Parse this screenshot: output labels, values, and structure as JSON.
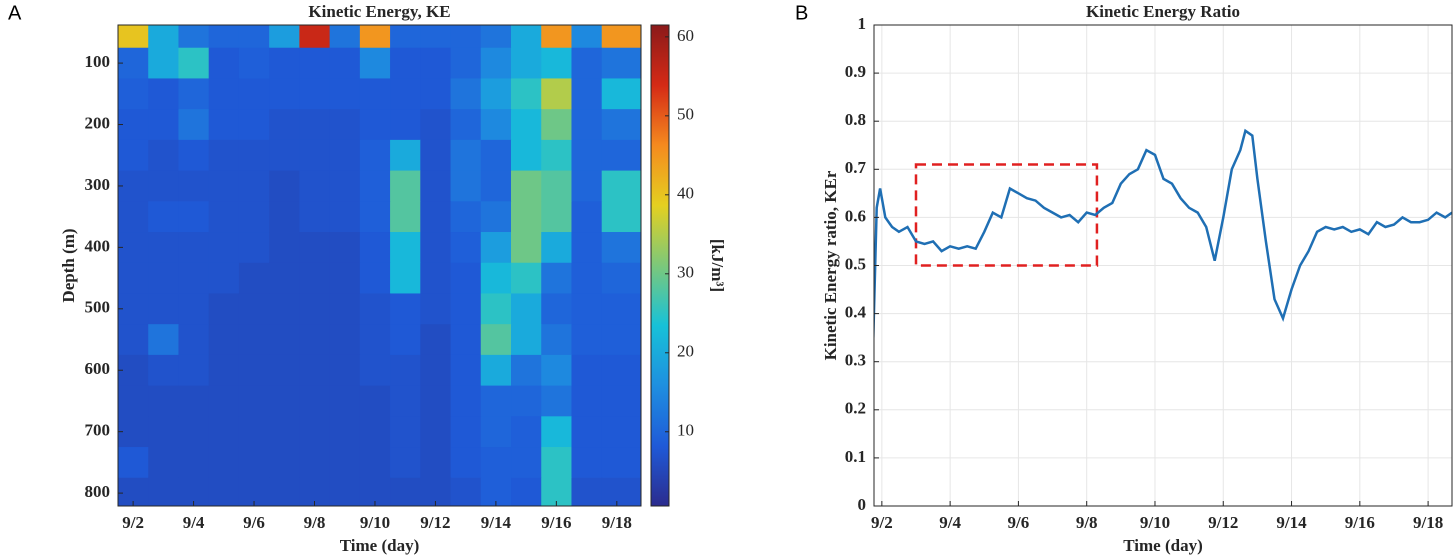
{
  "chart_data": [
    {
      "type": "heatmap",
      "panel_label": "A",
      "title": "Kinetic Energy, KE",
      "x_label": "Time (day)",
      "y_label": "Depth (m)",
      "colorbar_label": "[kJ/m³]",
      "x": [
        2,
        3,
        4,
        5,
        6,
        7,
        8,
        9,
        10,
        11,
        12,
        13,
        14,
        15,
        16,
        17,
        18
      ],
      "y": [
        50,
        100,
        150,
        200,
        250,
        300,
        350,
        400,
        450,
        500,
        550,
        600,
        650,
        700,
        750,
        800
      ],
      "z": [
        [
          40,
          20,
          12,
          10,
          10,
          18,
          55,
          12,
          45,
          10,
          10,
          10,
          12,
          20,
          45,
          15,
          45
        ],
        [
          10,
          20,
          25,
          8,
          9,
          8,
          8,
          8,
          15,
          8,
          8,
          10,
          15,
          20,
          22,
          10,
          12
        ],
        [
          9,
          8,
          10,
          8,
          8,
          8,
          8,
          8,
          8,
          8,
          8,
          12,
          18,
          25,
          35,
          10,
          22
        ],
        [
          8,
          8,
          12,
          8,
          8,
          7,
          7,
          7,
          8,
          8,
          7,
          10,
          15,
          22,
          30,
          10,
          12
        ],
        [
          8,
          7,
          8,
          7,
          7,
          7,
          7,
          7,
          9,
          20,
          7,
          12,
          10,
          22,
          25,
          10,
          10
        ],
        [
          7,
          7,
          7,
          7,
          7,
          6,
          7,
          7,
          9,
          28,
          7,
          12,
          10,
          30,
          28,
          10,
          25
        ],
        [
          7,
          8,
          8,
          7,
          7,
          6,
          7,
          7,
          9,
          28,
          7,
          10,
          12,
          30,
          28,
          9,
          25
        ],
        [
          7,
          7,
          7,
          7,
          7,
          6,
          6,
          6,
          8,
          22,
          7,
          9,
          18,
          30,
          20,
          9,
          12
        ],
        [
          7,
          7,
          7,
          7,
          6,
          6,
          6,
          6,
          8,
          22,
          7,
          8,
          22,
          25,
          12,
          9,
          10
        ],
        [
          7,
          7,
          7,
          6,
          6,
          6,
          6,
          6,
          7,
          8,
          7,
          8,
          25,
          20,
          10,
          9,
          9
        ],
        [
          7,
          12,
          7,
          6,
          6,
          6,
          6,
          6,
          7,
          8,
          6,
          8,
          28,
          20,
          12,
          9,
          9
        ],
        [
          6,
          7,
          7,
          6,
          6,
          6,
          6,
          6,
          7,
          7,
          6,
          8,
          20,
          12,
          15,
          8,
          8
        ],
        [
          6,
          6,
          6,
          6,
          6,
          6,
          6,
          6,
          6,
          7,
          6,
          8,
          10,
          10,
          12,
          8,
          8
        ],
        [
          6,
          6,
          6,
          6,
          6,
          6,
          6,
          6,
          6,
          7,
          6,
          8,
          10,
          9,
          22,
          8,
          8
        ],
        [
          8,
          6,
          6,
          6,
          6,
          6,
          6,
          6,
          6,
          7,
          6,
          8,
          9,
          9,
          25,
          8,
          8
        ],
        [
          6,
          6,
          6,
          6,
          6,
          6,
          6,
          6,
          6,
          6,
          6,
          7,
          9,
          8,
          25,
          7,
          7
        ]
      ],
      "xlim": [
        1.5,
        18.8
      ],
      "ylim": [
        38,
        821
      ],
      "y_reversed": true,
      "zlim": [
        0.6,
        61.5
      ],
      "xticks": [
        {
          "value": 2,
          "label": "9/2"
        },
        {
          "value": 4,
          "label": "9/4"
        },
        {
          "value": 6,
          "label": "9/6"
        },
        {
          "value": 8,
          "label": "9/8"
        },
        {
          "value": 10,
          "label": "9/10"
        },
        {
          "value": 12,
          "label": "9/12"
        },
        {
          "value": 14,
          "label": "9/14"
        },
        {
          "value": 16,
          "label": "9/16"
        },
        {
          "value": 18,
          "label": "9/18"
        }
      ],
      "yticks": [
        100,
        200,
        300,
        400,
        500,
        600,
        700,
        800
      ],
      "zticks": [
        10,
        20,
        30,
        40,
        50,
        60
      ],
      "colormap": [
        "#2b2c8e",
        "#1f5ad8",
        "#1e8fe0",
        "#17c1d8",
        "#7cc87a",
        "#e4d020",
        "#f58a1f",
        "#d42a16",
        "#8b1a1a"
      ]
    },
    {
      "type": "line",
      "panel_label": "B",
      "title": "Kinetic Energy Ratio",
      "x_label": "Time (day)",
      "y_label": "Kinetic Energy ratio, KEr",
      "x": [
        1.75,
        1.85,
        1.95,
        2.1,
        2.3,
        2.5,
        2.75,
        3.0,
        3.25,
        3.5,
        3.75,
        4.0,
        4.25,
        4.5,
        4.75,
        5.0,
        5.25,
        5.5,
        5.75,
        6.0,
        6.25,
        6.5,
        6.75,
        7.0,
        7.25,
        7.5,
        7.75,
        8.0,
        8.25,
        8.5,
        8.75,
        9.0,
        9.25,
        9.5,
        9.75,
        10.0,
        10.25,
        10.5,
        10.75,
        11.0,
        11.25,
        11.5,
        11.75,
        12.0,
        12.25,
        12.5,
        12.65,
        12.85,
        13.0,
        13.25,
        13.5,
        13.75,
        14.0,
        14.25,
        14.5,
        14.75,
        15.0,
        15.25,
        15.5,
        15.75,
        16.0,
        16.25,
        16.5,
        16.75,
        17.0,
        17.25,
        17.5,
        17.75,
        18.0,
        18.25,
        18.5,
        18.7
      ],
      "series": [
        {
          "color": "#1f6fb4",
          "values": [
            0.35,
            0.62,
            0.66,
            0.6,
            0.58,
            0.57,
            0.58,
            0.55,
            0.545,
            0.55,
            0.53,
            0.54,
            0.535,
            0.54,
            0.535,
            0.57,
            0.61,
            0.6,
            0.66,
            0.65,
            0.64,
            0.635,
            0.62,
            0.61,
            0.6,
            0.605,
            0.59,
            0.61,
            0.605,
            0.62,
            0.63,
            0.67,
            0.69,
            0.7,
            0.74,
            0.73,
            0.68,
            0.67,
            0.64,
            0.62,
            0.61,
            0.58,
            0.51,
            0.6,
            0.7,
            0.74,
            0.78,
            0.77,
            0.68,
            0.55,
            0.43,
            0.39,
            0.45,
            0.5,
            0.53,
            0.57,
            0.58,
            0.575,
            0.58,
            0.57,
            0.575,
            0.565,
            0.59,
            0.58,
            0.585,
            0.6,
            0.59,
            0.59,
            0.595,
            0.61,
            0.6,
            0.61
          ]
        }
      ],
      "xlim": [
        1.77,
        18.7
      ],
      "ylim": [
        0,
        1
      ],
      "xticks": [
        {
          "value": 2,
          "label": "9/2"
        },
        {
          "value": 4,
          "label": "9/4"
        },
        {
          "value": 6,
          "label": "9/6"
        },
        {
          "value": 8,
          "label": "9/8"
        },
        {
          "value": 10,
          "label": "9/10"
        },
        {
          "value": 12,
          "label": "9/12"
        },
        {
          "value": 14,
          "label": "9/14"
        },
        {
          "value": 16,
          "label": "9/16"
        },
        {
          "value": 18,
          "label": "9/18"
        }
      ],
      "yticks": [
        0,
        0.1,
        0.2,
        0.3,
        0.4,
        0.5,
        0.6,
        0.7,
        0.8,
        0.9,
        1
      ],
      "grid": true,
      "highlight_box": {
        "x": [
          3,
          8.3
        ],
        "y": [
          0.5,
          0.71
        ],
        "color": "#e02020"
      }
    }
  ]
}
